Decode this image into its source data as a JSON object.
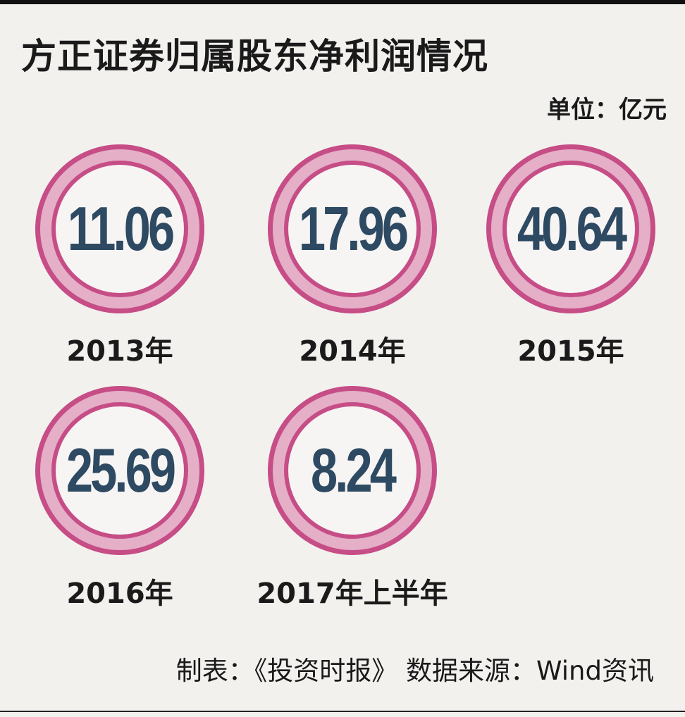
{
  "chart_data": {
    "type": "table",
    "title": "方正证券归属股东净利润情况",
    "unit_label": "单位：亿元",
    "categories": [
      "2013年",
      "2014年",
      "2015年",
      "2016年",
      "2017年上半年"
    ],
    "values": [
      11.06,
      17.96,
      40.64,
      25.69,
      8.24
    ],
    "value_labels": [
      "11.06",
      "17.96",
      "40.64",
      "25.69",
      "8.24"
    ],
    "colors": {
      "ring": "#c64d86",
      "ring_fill": "#e4afc7",
      "value_text": "#2e4a63"
    }
  },
  "footer": {
    "credit": "制表：《投资时报》 数据来源：Wind资讯"
  }
}
